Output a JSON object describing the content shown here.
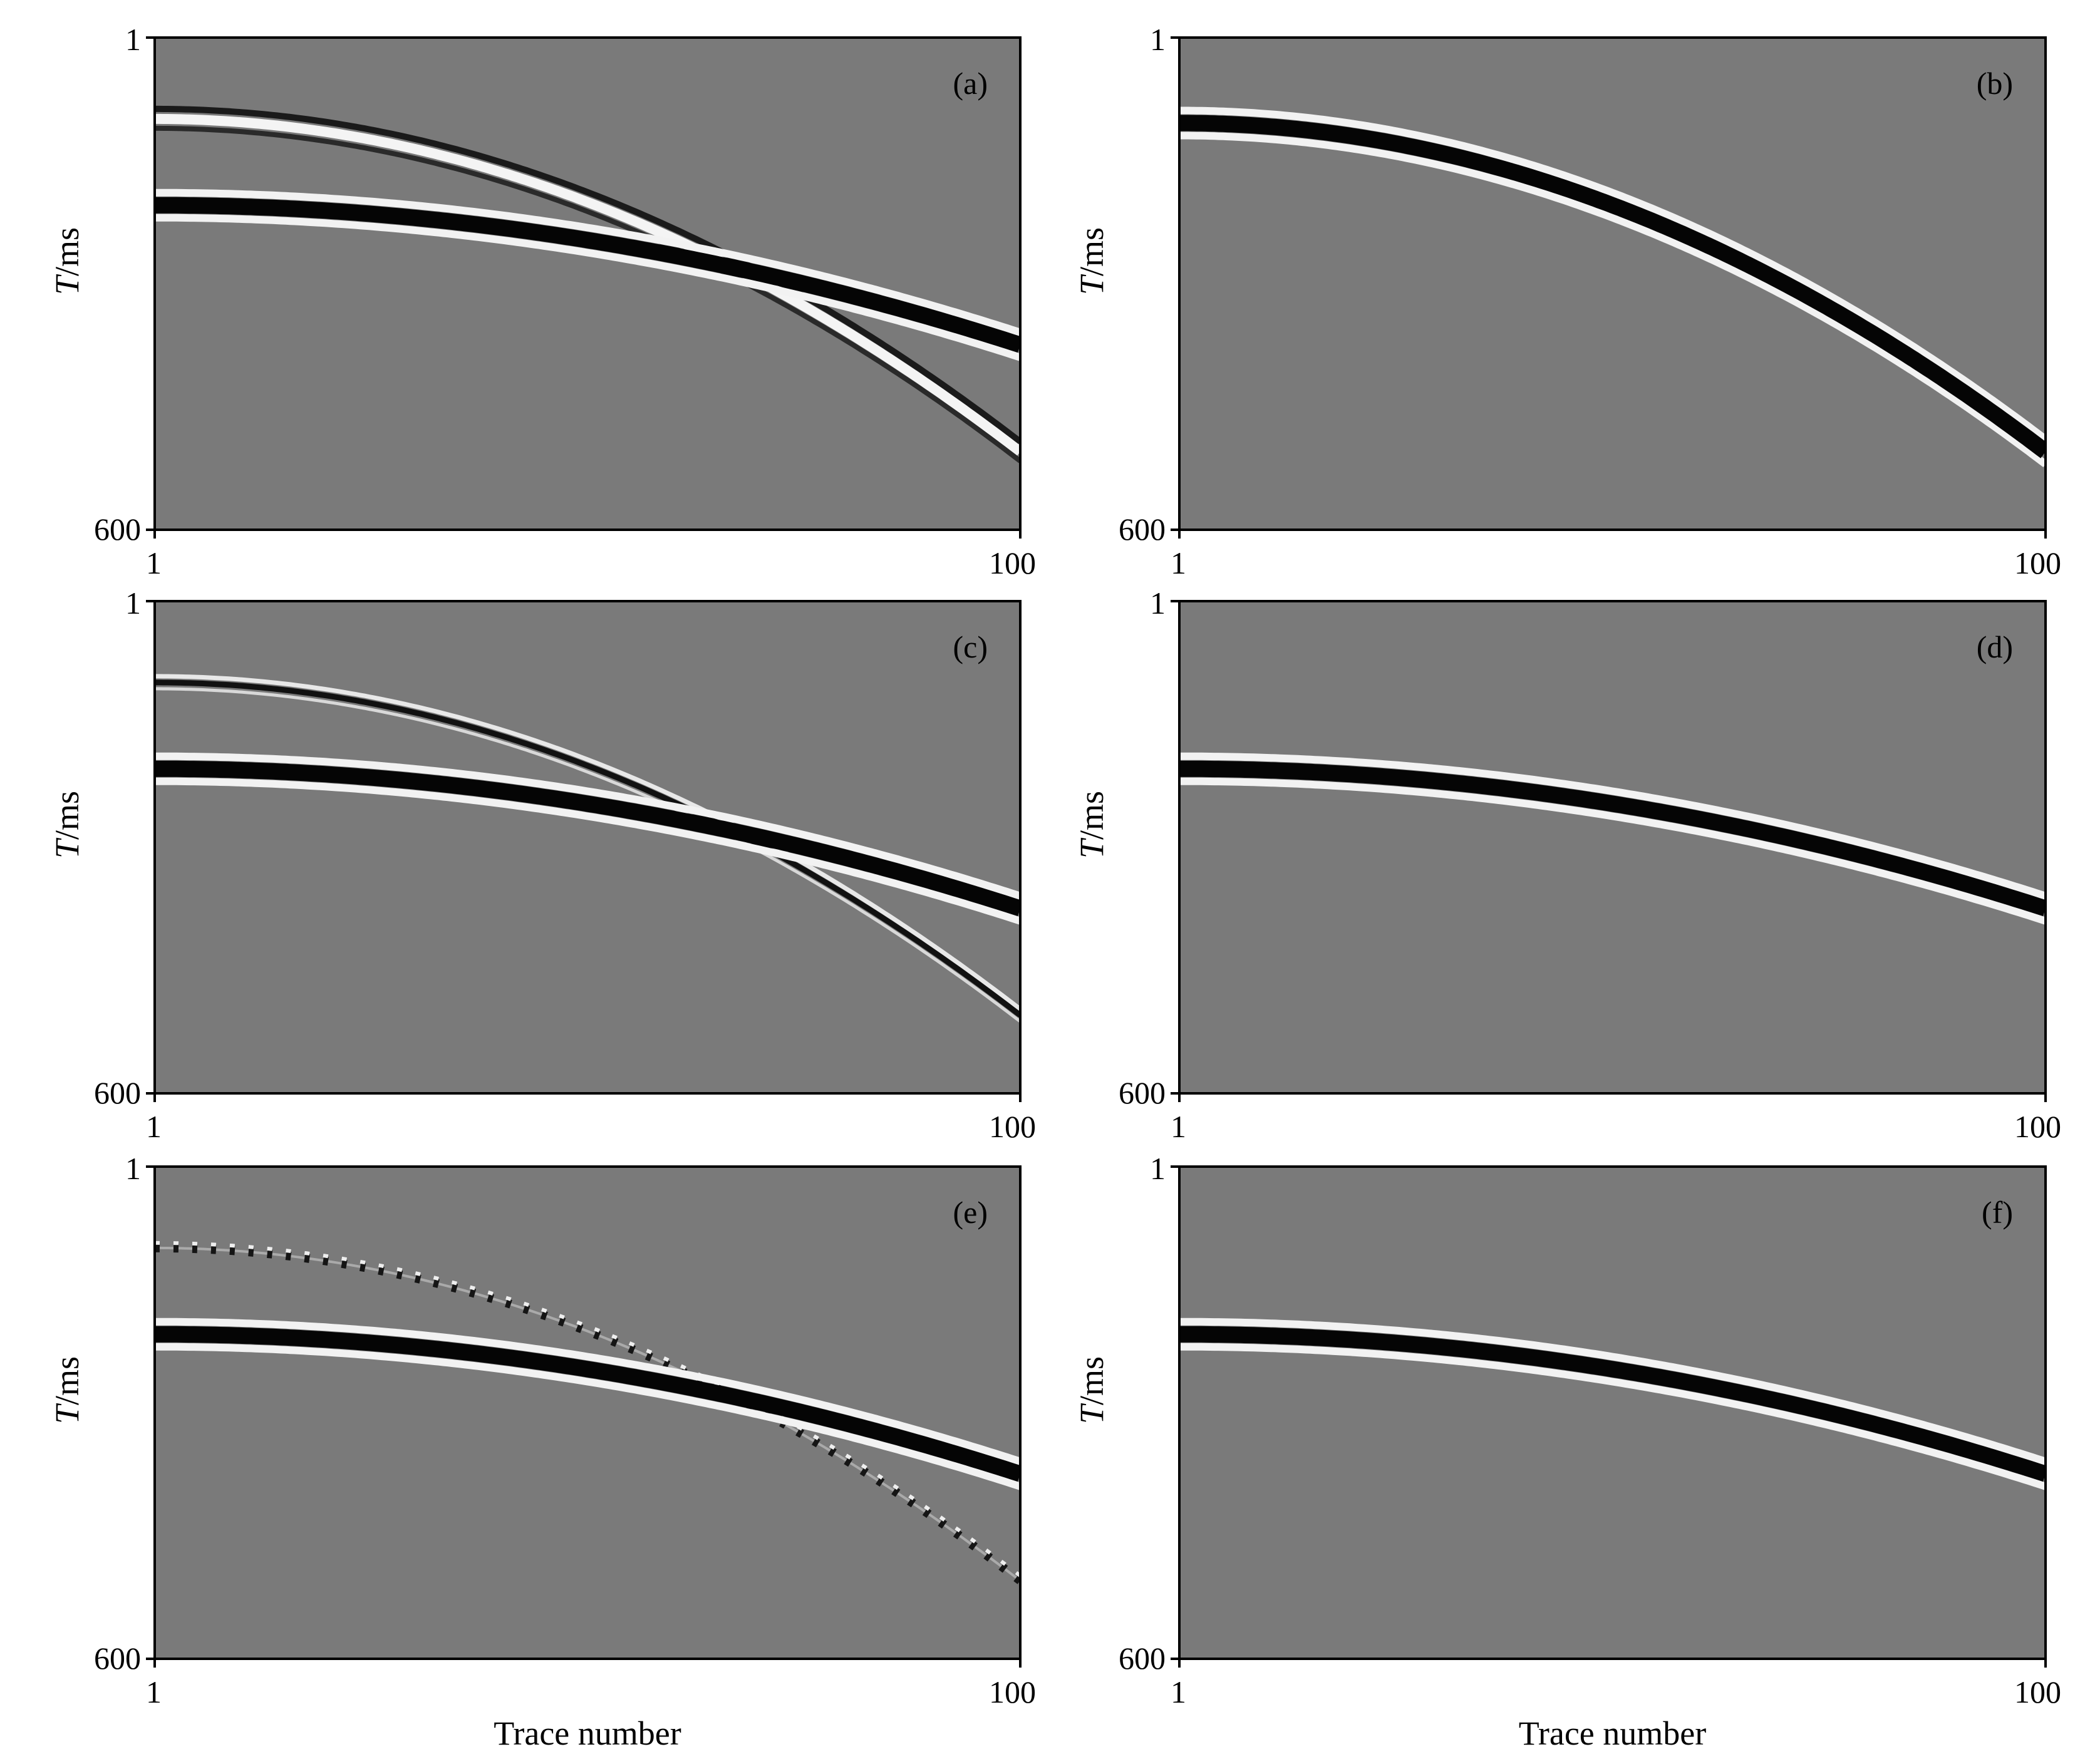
{
  "figure": {
    "x_axis_title": "Trace number",
    "y_axis_title_italic": "T",
    "y_axis_title_rest": "/ms"
  },
  "chart_data": [
    {
      "type": "heatmap",
      "panel_label": "(a)",
      "x_tick_labels": [
        "1",
        "100"
      ],
      "y_tick_labels": [
        "1",
        "600"
      ],
      "xlim": [
        1,
        100
      ],
      "ylim": [
        1,
        600
      ],
      "ylabel": "T/ms",
      "xlabel": "",
      "background_color": "#7a7a7a",
      "events": [
        {
          "name": "event-1",
          "t0_ms": 100,
          "t_end_ms": 505,
          "polarity": "mixed",
          "continuous": true
        },
        {
          "name": "event-2",
          "t0_ms": 205,
          "t_end_ms": 375,
          "polarity": "black",
          "continuous": true
        }
      ]
    },
    {
      "type": "heatmap",
      "panel_label": "(b)",
      "x_tick_labels": [
        "1",
        "100"
      ],
      "y_tick_labels": [
        "1",
        "600"
      ],
      "xlim": [
        1,
        100
      ],
      "ylim": [
        1,
        600
      ],
      "ylabel": "T/ms",
      "xlabel": "",
      "background_color": "#7a7a7a",
      "events": [
        {
          "name": "event-1",
          "t0_ms": 105,
          "t_end_ms": 505,
          "polarity": "black",
          "continuous": true
        }
      ]
    },
    {
      "type": "heatmap",
      "panel_label": "(c)",
      "x_tick_labels": [
        "1",
        "100"
      ],
      "y_tick_labels": [
        "1",
        "600"
      ],
      "xlim": [
        1,
        100
      ],
      "ylim": [
        1,
        600
      ],
      "ylabel": "T/ms",
      "xlabel": "",
      "background_color": "#7a7a7a",
      "events": [
        {
          "name": "event-1",
          "t0_ms": 100,
          "t_end_ms": 505,
          "polarity": "thin",
          "continuous": true
        },
        {
          "name": "event-2",
          "t0_ms": 205,
          "t_end_ms": 375,
          "polarity": "black",
          "continuous": true
        }
      ]
    },
    {
      "type": "heatmap",
      "panel_label": "(d)",
      "x_tick_labels": [
        "1",
        "100"
      ],
      "y_tick_labels": [
        "1",
        "600"
      ],
      "xlim": [
        1,
        100
      ],
      "ylim": [
        1,
        600
      ],
      "ylabel": "T/ms",
      "xlabel": "",
      "background_color": "#7a7a7a",
      "events": [
        {
          "name": "event-2",
          "t0_ms": 205,
          "t_end_ms": 375,
          "polarity": "black",
          "continuous": true
        }
      ]
    },
    {
      "type": "heatmap",
      "panel_label": "(e)",
      "x_tick_labels": [
        "1",
        "100"
      ],
      "y_tick_labels": [
        "1",
        "600"
      ],
      "xlim": [
        1,
        100
      ],
      "ylim": [
        1,
        600
      ],
      "ylabel": "T/ms",
      "xlabel": "Trace number",
      "background_color": "#7a7a7a",
      "events": [
        {
          "name": "event-1",
          "t0_ms": 100,
          "t_end_ms": 505,
          "polarity": "dashed",
          "continuous": false
        },
        {
          "name": "event-2",
          "t0_ms": 205,
          "t_end_ms": 375,
          "polarity": "black",
          "continuous": true
        }
      ]
    },
    {
      "type": "heatmap",
      "panel_label": "(f)",
      "x_tick_labels": [
        "1",
        "100"
      ],
      "y_tick_labels": [
        "1",
        "600"
      ],
      "xlim": [
        1,
        100
      ],
      "ylim": [
        1,
        600
      ],
      "ylabel": "T/ms",
      "xlabel": "Trace number",
      "background_color": "#7a7a7a",
      "events": [
        {
          "name": "event-2",
          "t0_ms": 205,
          "t_end_ms": 375,
          "polarity": "black",
          "continuous": true
        }
      ]
    }
  ]
}
